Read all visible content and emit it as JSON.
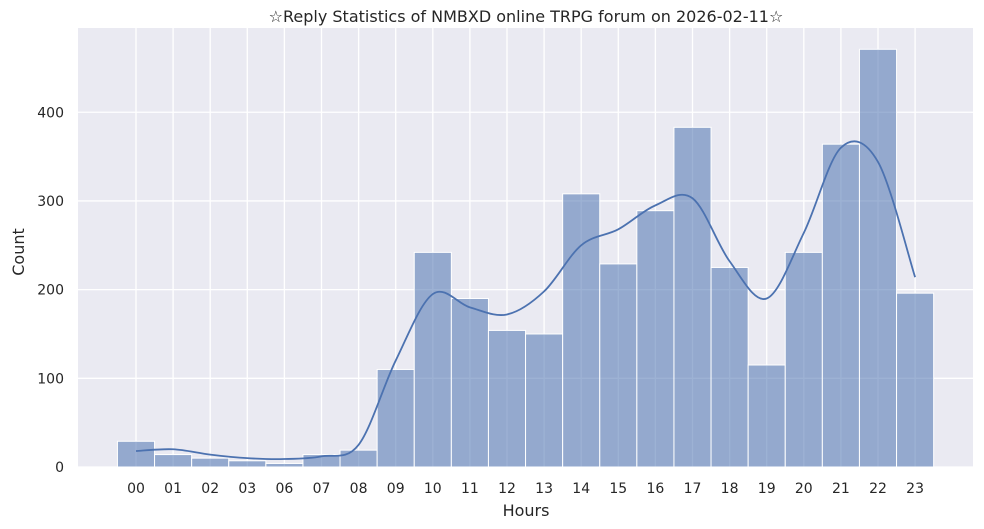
{
  "chart_data": {
    "type": "bar",
    "title": "☆Reply Statistics of NMBXD online TRPG forum on 2026-02-11☆",
    "xlabel": "Hours",
    "ylabel": "Count",
    "categories": [
      "00",
      "01",
      "02",
      "03",
      "06",
      "07",
      "08",
      "09",
      "10",
      "11",
      "12",
      "13",
      "14",
      "15",
      "16",
      "17",
      "18",
      "19",
      "20",
      "21",
      "22",
      "23"
    ],
    "values": [
      29,
      14,
      10,
      7,
      4,
      14,
      19,
      110,
      242,
      190,
      154,
      150,
      308,
      229,
      289,
      383,
      225,
      115,
      242,
      364,
      471,
      196
    ],
    "kde_curve": [
      18,
      20,
      14,
      10,
      9,
      12,
      25,
      120,
      195,
      180,
      172,
      198,
      250,
      268,
      295,
      303,
      232,
      190,
      264,
      360,
      344,
      214
    ],
    "ylim": [
      0,
      495
    ],
    "yticks": [
      0,
      100,
      200,
      300,
      400
    ],
    "grid": true,
    "colors": {
      "bar_fill": "#4c72b0",
      "bar_opacity": 0.55,
      "line": "#4c72b0",
      "plot_bg": "#eaeaf2",
      "grid": "#ffffff"
    }
  }
}
